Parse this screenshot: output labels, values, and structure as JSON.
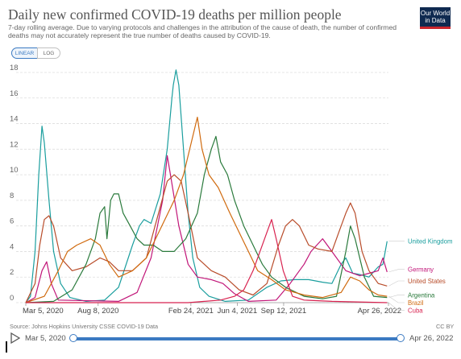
{
  "header": {
    "title": "Daily new confirmed COVID-19 deaths per million people",
    "subtitle": "7-day rolling average. Due to varying protocols and challenges in the attribution of the cause of death, the number of confirmed deaths may not accurately represent the true number of deaths caused by COVID-19.",
    "logo_line1": "Our World",
    "logo_line2": "in Data"
  },
  "controls": {
    "linear_label": "LINEAR",
    "log_label": "LOG",
    "selected_scale": "linear"
  },
  "footer": {
    "source": "Source: Johns Hopkins University CSSE COVID-19 Data",
    "license": "CC BY"
  },
  "timeline": {
    "start_label": "Mar 5, 2020",
    "end_label": "Apr 26, 2022"
  },
  "chart_data": {
    "type": "line",
    "ylim": [
      0,
      18
    ],
    "yticks": [
      0,
      2,
      4,
      6,
      8,
      10,
      12,
      14,
      16,
      18
    ],
    "x_ticks": [
      {
        "day": 0,
        "label": "Mar 5, 2020"
      },
      {
        "day": 156,
        "label": "Aug 8, 2020"
      },
      {
        "day": 356,
        "label": "Feb 24, 2021"
      },
      {
        "day": 456,
        "label": "Jun 4, 2021"
      },
      {
        "day": 556,
        "label": "Sep 12, 2021"
      },
      {
        "day": 782,
        "label": "Apr 26, 2022"
      }
    ],
    "x_range_days": [
      0,
      782
    ],
    "series": [
      {
        "name": "United Kingdom",
        "color": "#1a9e9e",
        "points": [
          [
            0,
            0
          ],
          [
            10,
            0.5
          ],
          [
            20,
            4
          ],
          [
            28,
            10
          ],
          [
            35,
            13.8
          ],
          [
            40,
            12.5
          ],
          [
            50,
            8
          ],
          [
            60,
            4
          ],
          [
            75,
            1.5
          ],
          [
            95,
            0.4
          ],
          [
            130,
            0.1
          ],
          [
            170,
            0.2
          ],
          [
            200,
            1.2
          ],
          [
            230,
            4.5
          ],
          [
            245,
            6
          ],
          [
            255,
            6.5
          ],
          [
            270,
            6.2
          ],
          [
            290,
            8.5
          ],
          [
            305,
            12
          ],
          [
            315,
            16
          ],
          [
            318,
            17
          ],
          [
            324,
            18.2
          ],
          [
            330,
            17
          ],
          [
            340,
            12
          ],
          [
            350,
            7
          ],
          [
            360,
            3.5
          ],
          [
            375,
            1.2
          ],
          [
            395,
            0.5
          ],
          [
            430,
            0.1
          ],
          [
            480,
            0.2
          ],
          [
            520,
            1.2
          ],
          [
            550,
            1.7
          ],
          [
            580,
            1.8
          ],
          [
            610,
            1.8
          ],
          [
            640,
            1.6
          ],
          [
            660,
            1.5
          ],
          [
            680,
            3
          ],
          [
            690,
            3.5
          ],
          [
            705,
            2.3
          ],
          [
            720,
            2.2
          ],
          [
            740,
            2
          ],
          [
            760,
            2.8
          ],
          [
            770,
            3
          ],
          [
            775,
            4
          ],
          [
            779,
            4.8
          ]
        ],
        "label_value": 4.8
      },
      {
        "name": "Germany",
        "color": "#c11578",
        "points": [
          [
            0,
            0
          ],
          [
            20,
            0.4
          ],
          [
            35,
            2.5
          ],
          [
            45,
            3.2
          ],
          [
            55,
            1.5
          ],
          [
            70,
            0.2
          ],
          [
            200,
            0.1
          ],
          [
            240,
            0.8
          ],
          [
            270,
            3.5
          ],
          [
            295,
            8
          ],
          [
            305,
            11.5
          ],
          [
            312,
            10
          ],
          [
            330,
            6
          ],
          [
            350,
            3
          ],
          [
            370,
            2
          ],
          [
            400,
            1.8
          ],
          [
            425,
            1.5
          ],
          [
            450,
            0.7
          ],
          [
            480,
            0.1
          ],
          [
            540,
            0.2
          ],
          [
            570,
            1.5
          ],
          [
            600,
            3
          ],
          [
            615,
            4
          ],
          [
            640,
            5
          ],
          [
            660,
            4
          ],
          [
            690,
            2.5
          ],
          [
            720,
            2.1
          ],
          [
            740,
            2.3
          ],
          [
            760,
            2.5
          ],
          [
            770,
            3.5
          ],
          [
            779,
            2.4
          ]
        ],
        "label_value": 2.6
      },
      {
        "name": "United States",
        "color": "#b84c2a",
        "points": [
          [
            0,
            0
          ],
          [
            20,
            1.5
          ],
          [
            30,
            4.5
          ],
          [
            40,
            6.5
          ],
          [
            50,
            6.8
          ],
          [
            60,
            6
          ],
          [
            75,
            3.5
          ],
          [
            100,
            2.5
          ],
          [
            130,
            2.8
          ],
          [
            160,
            3.5
          ],
          [
            180,
            3.2
          ],
          [
            200,
            2.5
          ],
          [
            230,
            2.5
          ],
          [
            260,
            3.5
          ],
          [
            290,
            7.5
          ],
          [
            305,
            9.5
          ],
          [
            320,
            10
          ],
          [
            335,
            9.5
          ],
          [
            350,
            7
          ],
          [
            370,
            3.5
          ],
          [
            400,
            2.5
          ],
          [
            430,
            2
          ],
          [
            460,
            1
          ],
          [
            490,
            0.6
          ],
          [
            520,
            1.5
          ],
          [
            545,
            4.5
          ],
          [
            560,
            6
          ],
          [
            575,
            6.5
          ],
          [
            590,
            6
          ],
          [
            610,
            4.5
          ],
          [
            630,
            4.2
          ],
          [
            660,
            4
          ],
          [
            675,
            5.5
          ],
          [
            690,
            7
          ],
          [
            700,
            7.8
          ],
          [
            710,
            7
          ],
          [
            725,
            4
          ],
          [
            740,
            2.5
          ],
          [
            760,
            1.5
          ],
          [
            779,
            1.3
          ]
        ],
        "label_value": 1.7
      },
      {
        "name": "Argentina",
        "color": "#2a7a3c",
        "points": [
          [
            0,
            0
          ],
          [
            60,
            0.1
          ],
          [
            100,
            1
          ],
          [
            130,
            3
          ],
          [
            150,
            5
          ],
          [
            160,
            7
          ],
          [
            170,
            7.5
          ],
          [
            175,
            5
          ],
          [
            183,
            8
          ],
          [
            190,
            8.5
          ],
          [
            200,
            8.5
          ],
          [
            210,
            7
          ],
          [
            225,
            6
          ],
          [
            240,
            5
          ],
          [
            255,
            4.5
          ],
          [
            275,
            4.5
          ],
          [
            295,
            4
          ],
          [
            320,
            4
          ],
          [
            345,
            5
          ],
          [
            370,
            7
          ],
          [
            385,
            10
          ],
          [
            400,
            12
          ],
          [
            410,
            13
          ],
          [
            420,
            11
          ],
          [
            435,
            10
          ],
          [
            450,
            8
          ],
          [
            470,
            6
          ],
          [
            490,
            4.5
          ],
          [
            510,
            3
          ],
          [
            530,
            2
          ],
          [
            560,
            1.2
          ],
          [
            600,
            0.5
          ],
          [
            640,
            0.3
          ],
          [
            670,
            0.5
          ],
          [
            690,
            4
          ],
          [
            700,
            6
          ],
          [
            710,
            5
          ],
          [
            730,
            2
          ],
          [
            750,
            0.5
          ],
          [
            779,
            0.4
          ]
        ],
        "label_value": 0.6
      },
      {
        "name": "Brazil",
        "color": "#d06a0e",
        "points": [
          [
            0,
            0
          ],
          [
            40,
            0.5
          ],
          [
            70,
            2.5
          ],
          [
            90,
            4
          ],
          [
            110,
            4.5
          ],
          [
            140,
            5
          ],
          [
            160,
            4.5
          ],
          [
            180,
            3
          ],
          [
            200,
            2
          ],
          [
            230,
            2.5
          ],
          [
            260,
            3.5
          ],
          [
            280,
            5
          ],
          [
            300,
            6.5
          ],
          [
            320,
            8
          ],
          [
            340,
            10
          ],
          [
            360,
            13
          ],
          [
            370,
            14.5
          ],
          [
            380,
            12
          ],
          [
            395,
            10
          ],
          [
            415,
            9
          ],
          [
            440,
            7
          ],
          [
            460,
            5.5
          ],
          [
            480,
            4
          ],
          [
            500,
            2.5
          ],
          [
            530,
            1.8
          ],
          [
            560,
            1
          ],
          [
            600,
            0.6
          ],
          [
            640,
            0.4
          ],
          [
            680,
            0.8
          ],
          [
            700,
            2
          ],
          [
            720,
            1.7
          ],
          [
            740,
            1
          ],
          [
            760,
            0.6
          ],
          [
            779,
            0.5
          ]
        ],
        "label_value": 0.0
      },
      {
        "name": "Cuba",
        "color": "#d8224f",
        "points": [
          [
            0,
            0
          ],
          [
            350,
            0
          ],
          [
            420,
            0.2
          ],
          [
            450,
            0.5
          ],
          [
            470,
            1
          ],
          [
            490,
            2.5
          ],
          [
            505,
            4
          ],
          [
            520,
            5.5
          ],
          [
            530,
            6.5
          ],
          [
            540,
            5
          ],
          [
            555,
            2.5
          ],
          [
            575,
            0.5
          ],
          [
            600,
            0.2
          ],
          [
            660,
            0.1
          ],
          [
            779,
            0
          ]
        ],
        "label_value": -0.6
      }
    ]
  }
}
